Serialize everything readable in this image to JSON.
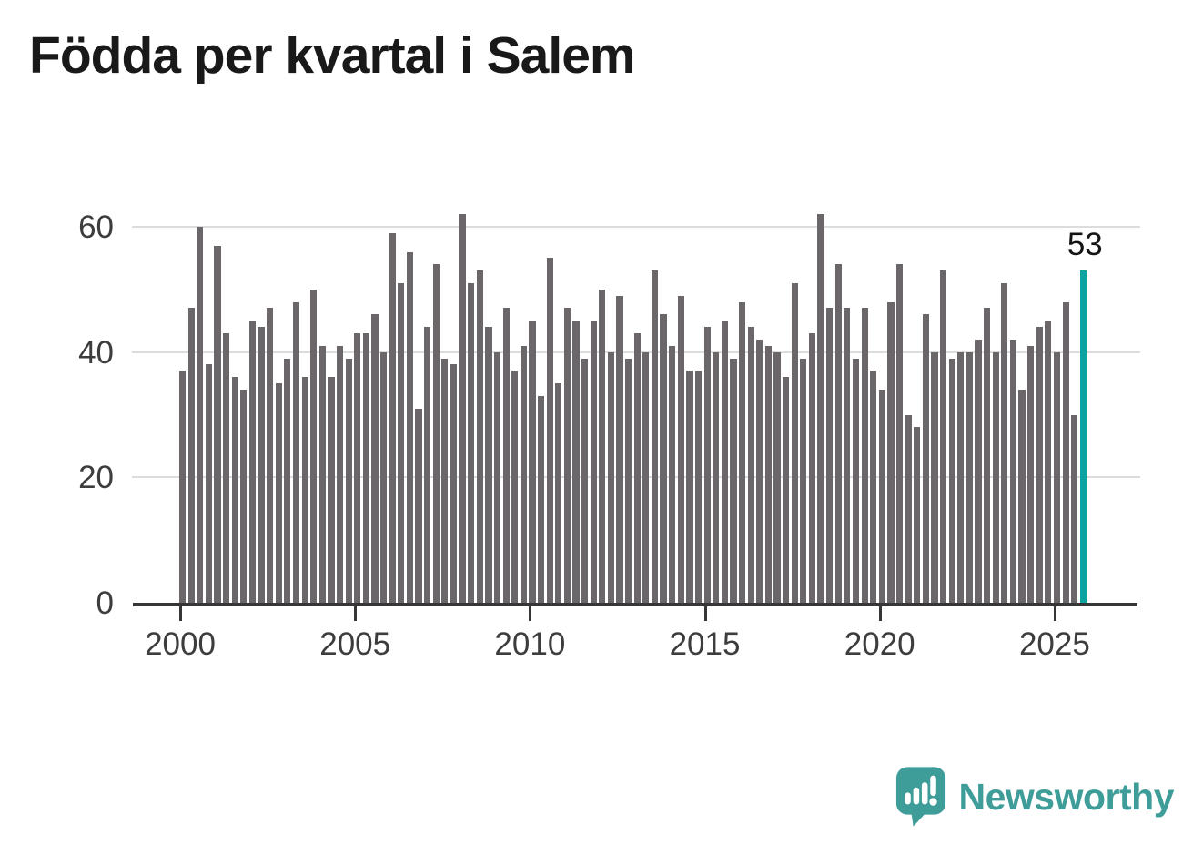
{
  "title": "Födda per kvartal i Salem",
  "branding": {
    "name": "Newsworthy",
    "logo_icon": "chart-bars-exclamation-bubble",
    "color": "#3e9d98"
  },
  "colors": {
    "bar": "#6a6669",
    "highlight": "#0ba3a2",
    "grid": "#dcdcdc",
    "axis": "#363636",
    "tick_text": "#3d3d3d",
    "title_text": "#191919",
    "annotation_text": "#141414"
  },
  "chart_data": {
    "type": "bar",
    "title": "Födda per kvartal i Salem",
    "xlabel": "",
    "ylabel": "",
    "x_unit": "quarter",
    "x_start": "2000-Q1",
    "x_end": "2025-Q4",
    "x_tick_labels": [
      "2000",
      "2005",
      "2010",
      "2015",
      "2020",
      "2025"
    ],
    "y_ticks": [
      0,
      20,
      40,
      60
    ],
    "y_tick_labels": [
      "0",
      "20",
      "40",
      "60"
    ],
    "ylim": [
      0,
      65
    ],
    "grid": "horizontal",
    "legend": "none",
    "series": [
      {
        "name": "Födda per kvartal",
        "values": [
          37,
          47,
          60,
          38,
          57,
          43,
          36,
          34,
          45,
          44,
          47,
          35,
          39,
          48,
          36,
          50,
          41,
          36,
          41,
          39,
          43,
          43,
          46,
          40,
          59,
          51,
          56,
          31,
          44,
          54,
          39,
          38,
          62,
          51,
          53,
          44,
          40,
          47,
          37,
          41,
          45,
          33,
          55,
          35,
          47,
          45,
          39,
          45,
          50,
          40,
          49,
          39,
          43,
          40,
          53,
          46,
          41,
          49,
          37,
          37,
          44,
          40,
          45,
          39,
          48,
          44,
          42,
          41,
          40,
          36,
          51,
          39,
          43,
          62,
          47,
          54,
          47,
          39,
          47,
          37,
          34,
          48,
          54,
          30,
          28,
          46,
          40,
          53,
          39,
          40,
          40,
          42,
          47,
          40,
          51,
          42,
          34,
          41,
          44,
          45,
          40,
          48,
          30,
          53
        ]
      }
    ],
    "highlight": {
      "index": 103,
      "value": 53,
      "label": "53"
    }
  }
}
